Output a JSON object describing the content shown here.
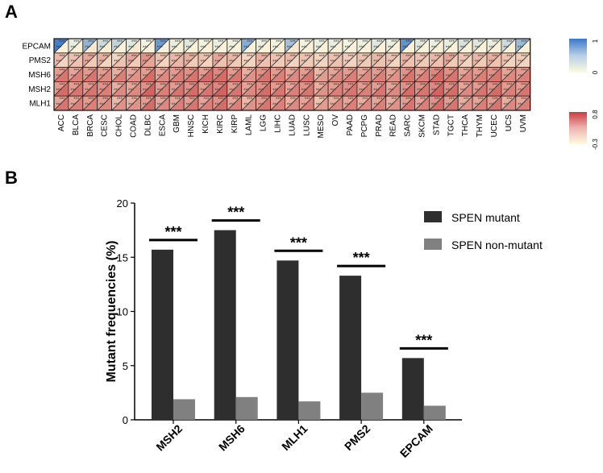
{
  "panels": {
    "a": "A",
    "b": "B"
  },
  "chart_data": [
    {
      "type": "heatmap",
      "rows": [
        "EPCAM",
        "PMS2",
        "MSH6",
        "MSH2",
        "MLH1"
      ],
      "columns": [
        "ACC",
        "BLCA",
        "BRCA",
        "CESC",
        "CHOL",
        "COAD",
        "DLBC",
        "ESCA",
        "GBM",
        "HNSC",
        "KICH",
        "KIRC",
        "KIRP",
        "LAML",
        "LGG",
        "LIHC",
        "LUAD",
        "LUSC",
        "MESO",
        "OV",
        "PAAD",
        "PCPG",
        "PRAD",
        "READ",
        "SARC",
        "SKCM",
        "STAD",
        "TGCT",
        "THCA",
        "THYM",
        "UCEC",
        "UCS",
        "UVM"
      ],
      "cell_annotation": "***",
      "colorbars": [
        {
          "ticks": [
            "1",
            "0"
          ],
          "colors": [
            "#3a78c8",
            "#fdfbe0"
          ]
        },
        {
          "ticks": [
            "0.8",
            "-0.3"
          ],
          "colors": [
            "#c83c40",
            "#fdfbe0"
          ]
        }
      ],
      "upper_values": [
        [
          0.95,
          0.1,
          0.55,
          0.25,
          0.3,
          0.15,
          0.05,
          0.75,
          0.1,
          0.15,
          0.05,
          0.1,
          0.08,
          0.6,
          0.1,
          0.05,
          0.45,
          0.05,
          0.1,
          0.1,
          0.05,
          0.08,
          0.15,
          0.1,
          0.8,
          0.15,
          0.1,
          0.1,
          0.2,
          0.15,
          0.1,
          0.25,
          0.5
        ],
        [
          0.35,
          0.3,
          0.45,
          0.4,
          0.2,
          0.45,
          0.55,
          0.3,
          0.35,
          0.4,
          0.3,
          0.45,
          0.35,
          0.2,
          0.4,
          0.3,
          0.35,
          0.3,
          0.2,
          0.3,
          0.25,
          0.3,
          0.35,
          0.3,
          0.4,
          0.3,
          0.35,
          0.45,
          0.3,
          0.35,
          0.4,
          0.3,
          0.25
        ],
        [
          0.5,
          0.45,
          0.5,
          0.5,
          0.4,
          0.45,
          0.5,
          0.45,
          0.5,
          0.55,
          0.5,
          0.6,
          0.5,
          0.4,
          0.55,
          0.5,
          0.45,
          0.5,
          0.35,
          0.45,
          0.5,
          0.45,
          0.5,
          0.45,
          0.55,
          0.5,
          0.6,
          0.55,
          0.45,
          0.5,
          0.55,
          0.45,
          0.5
        ],
        [
          0.5,
          0.5,
          0.5,
          0.55,
          0.4,
          0.45,
          0.55,
          0.5,
          0.5,
          0.55,
          0.5,
          0.6,
          0.5,
          0.45,
          0.55,
          0.5,
          0.45,
          0.55,
          0.4,
          0.5,
          0.55,
          0.5,
          0.5,
          0.45,
          0.55,
          0.55,
          0.6,
          0.55,
          0.45,
          0.5,
          0.55,
          0.5,
          0.5
        ],
        [
          0.45,
          0.45,
          0.5,
          0.5,
          0.35,
          0.4,
          0.5,
          0.45,
          0.45,
          0.5,
          0.45,
          0.55,
          0.45,
          0.35,
          0.5,
          0.45,
          0.4,
          0.45,
          0.3,
          0.4,
          0.45,
          0.4,
          0.45,
          0.4,
          0.5,
          0.45,
          0.55,
          0.5,
          0.4,
          0.45,
          0.5,
          0.4,
          0.45
        ]
      ],
      "lower_values": [
        [
          0.05,
          0.05,
          0.1,
          0.08,
          0.05,
          0.1,
          0.05,
          0.05,
          0.05,
          0.05,
          0.05,
          0.05,
          0.05,
          0.05,
          0.05,
          0.05,
          0.1,
          0.05,
          0.05,
          0.05,
          0.05,
          0.05,
          0.05,
          0.05,
          0.05,
          0.05,
          0.05,
          0.05,
          0.05,
          0.05,
          0.05,
          0.05,
          0.05
        ],
        [
          0.2,
          0.3,
          0.25,
          0.2,
          0.3,
          0.25,
          0.45,
          0.2,
          0.35,
          0.25,
          0.2,
          0.3,
          0.25,
          0.2,
          0.3,
          0.25,
          0.2,
          0.25,
          0.2,
          0.3,
          0.2,
          0.25,
          0.3,
          0.2,
          0.3,
          0.25,
          0.3,
          0.25,
          0.2,
          0.25,
          0.3,
          0.2,
          0.2
        ],
        [
          0.7,
          0.65,
          0.7,
          0.6,
          0.65,
          0.55,
          0.75,
          0.6,
          0.65,
          0.7,
          0.75,
          0.75,
          0.7,
          0.55,
          0.7,
          0.65,
          0.6,
          0.7,
          0.5,
          0.6,
          0.65,
          0.6,
          0.65,
          0.55,
          0.7,
          0.65,
          0.75,
          0.7,
          0.6,
          0.65,
          0.7,
          0.6,
          0.65
        ],
        [
          0.75,
          0.7,
          0.7,
          0.65,
          0.6,
          0.6,
          0.8,
          0.65,
          0.7,
          0.75,
          0.7,
          0.8,
          0.7,
          0.6,
          0.75,
          0.7,
          0.65,
          0.7,
          0.55,
          0.65,
          0.7,
          0.65,
          0.7,
          0.6,
          0.75,
          0.7,
          0.8,
          0.75,
          0.6,
          0.7,
          0.75,
          0.65,
          0.7
        ],
        [
          0.7,
          0.65,
          0.65,
          0.6,
          0.55,
          0.55,
          0.75,
          0.6,
          0.65,
          0.7,
          0.65,
          0.75,
          0.65,
          0.55,
          0.7,
          0.65,
          0.6,
          0.65,
          0.5,
          0.6,
          0.65,
          0.6,
          0.65,
          0.55,
          0.7,
          0.65,
          0.75,
          0.7,
          0.55,
          0.65,
          0.7,
          0.6,
          0.65
        ]
      ]
    },
    {
      "type": "bar",
      "categories": [
        "MSH2",
        "MSH6",
        "MLH1",
        "PMS2",
        "EPCAM"
      ],
      "series": [
        {
          "name": "SPEN mutant",
          "color": "#2e2e2e",
          "values": [
            15.7,
            17.5,
            14.7,
            13.3,
            5.7
          ]
        },
        {
          "name": "SPEN non-mutant",
          "color": "#808080",
          "values": [
            1.9,
            2.1,
            1.7,
            2.5,
            1.3
          ]
        }
      ],
      "significance": [
        "***",
        "***",
        "***",
        "***",
        "***"
      ],
      "xlabel": "",
      "ylabel": "Mutant frequencies (%)",
      "ylim": [
        0,
        20
      ],
      "yticks": [
        0,
        5,
        10,
        15,
        20
      ],
      "legend": "top-right",
      "grid": false
    }
  ]
}
